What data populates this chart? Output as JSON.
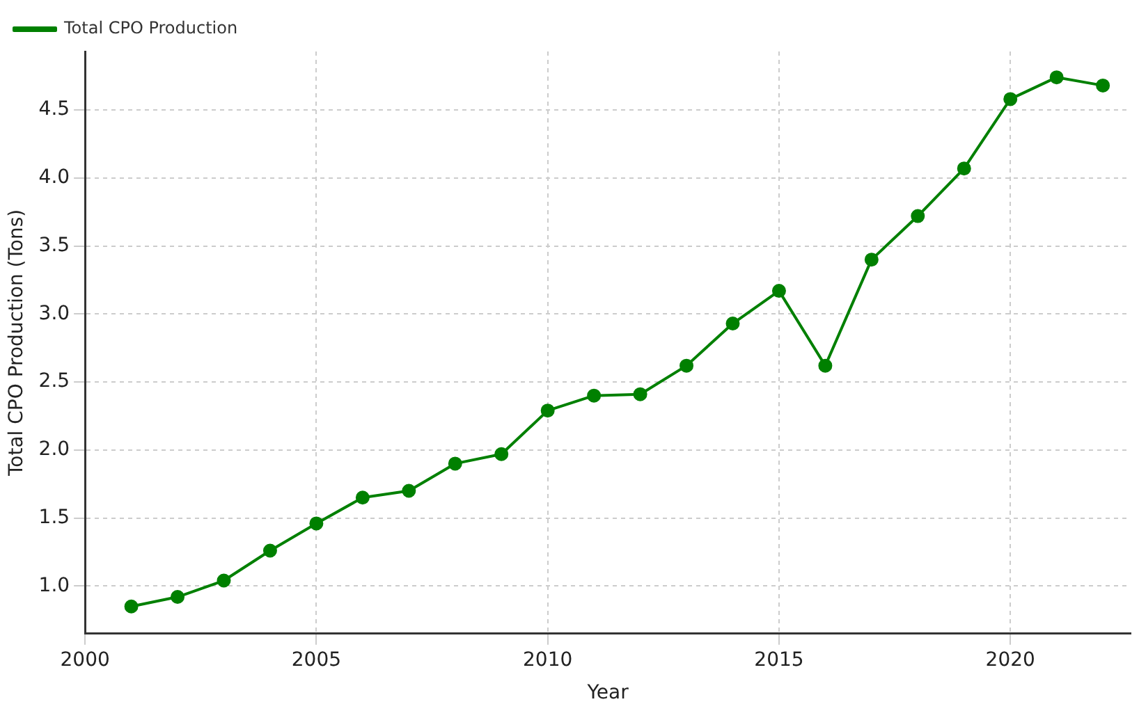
{
  "chart_data": {
    "type": "line",
    "xlabel": "Year",
    "ylabel": "Total CPO Production (Tons)",
    "x": [
      2001,
      2002,
      2003,
      2004,
      2005,
      2006,
      2007,
      2008,
      2009,
      2010,
      2011,
      2012,
      2013,
      2014,
      2015,
      2016,
      2017,
      2018,
      2019,
      2020,
      2021,
      2022
    ],
    "series": [
      {
        "name": "Total CPO Production",
        "color": "#008000",
        "values": [
          0.85,
          0.92,
          1.04,
          1.26,
          1.46,
          1.65,
          1.7,
          1.9,
          1.97,
          2.29,
          2.4,
          2.41,
          2.62,
          2.93,
          3.17,
          2.62,
          3.4,
          3.72,
          4.07,
          4.58,
          4.74,
          4.68
        ]
      }
    ],
    "xlim": [
      2000,
      2022.6
    ],
    "xticks": [
      2000,
      2005,
      2010,
      2015,
      2020
    ],
    "ylim": [
      0.65,
      4.93
    ],
    "yticks": [
      {
        "value": 1,
        "label": "1.0"
      },
      1.5,
      {
        "value": 2,
        "label": "2.0"
      },
      2.5,
      {
        "value": 3,
        "label": "3.0"
      },
      3.5,
      {
        "value": 4,
        "label": "4.0"
      },
      4.5
    ],
    "grid": true,
    "legend": "top left",
    "marker": "circle",
    "line_style": "solid"
  }
}
